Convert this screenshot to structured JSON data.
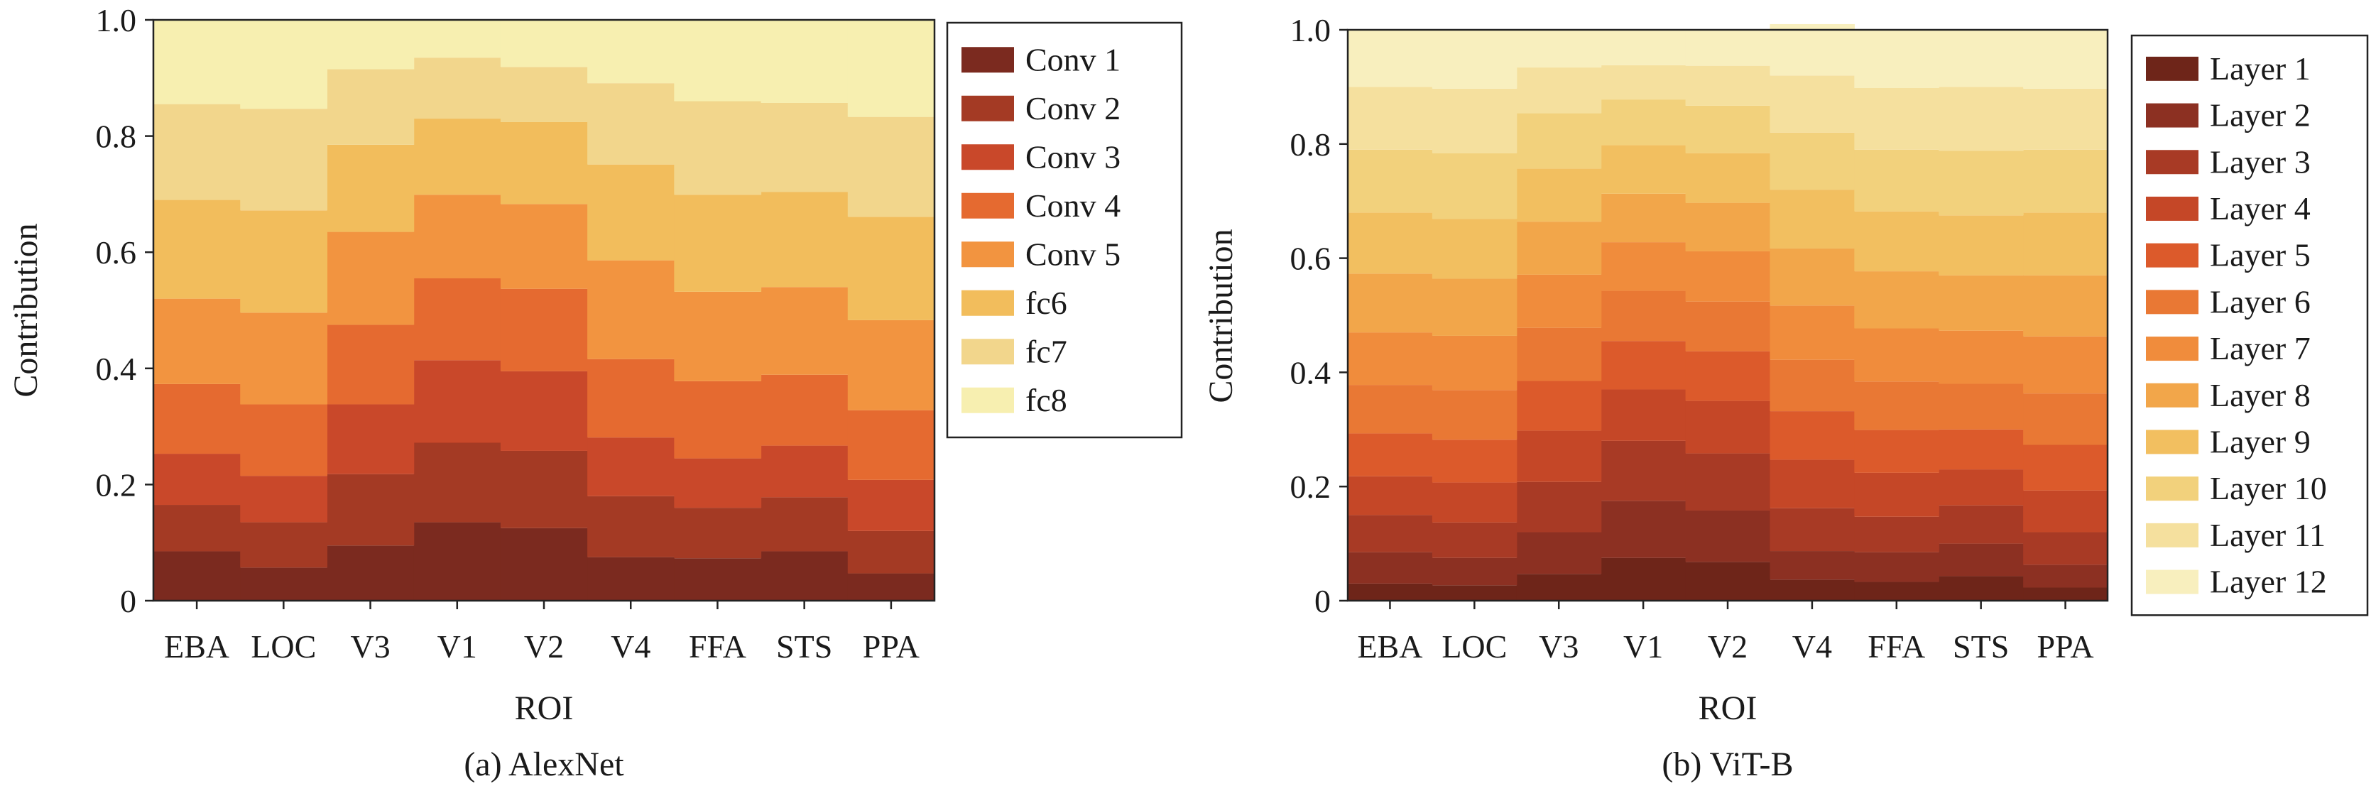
{
  "figure": {
    "captions": [
      "(a) AlexNet",
      "(b) ViT-B"
    ]
  },
  "chart_data": [
    {
      "type": "area",
      "subtype": "stacked-step",
      "caption": "(a) AlexNet",
      "xlabel": "ROI",
      "ylabel": "Contribution",
      "categories": [
        "EBA",
        "LOC",
        "V3",
        "V1",
        "V2",
        "V4",
        "FFA",
        "STS",
        "PPA"
      ],
      "ylim": [
        0,
        1.0
      ],
      "yticks": [
        0,
        0.2,
        0.4,
        0.6,
        0.8,
        1.0
      ],
      "ytick_labels": [
        "0",
        "0.2",
        "0.4",
        "0.6",
        "0.8",
        "1.0"
      ],
      "grid": false,
      "legend": "right",
      "series": [
        {
          "name": "Conv 1",
          "color": "#7b2a1f",
          "values": [
            0.085,
            0.057,
            0.095,
            0.135,
            0.125,
            0.075,
            0.073,
            0.085,
            0.047
          ]
        },
        {
          "name": "Conv 2",
          "color": "#a43a24",
          "values": [
            0.08,
            0.078,
            0.123,
            0.137,
            0.133,
            0.105,
            0.087,
            0.093,
            0.073
          ]
        },
        {
          "name": "Conv 3",
          "color": "#c9482a",
          "values": [
            0.088,
            0.08,
            0.12,
            0.142,
            0.137,
            0.101,
            0.085,
            0.089,
            0.088
          ]
        },
        {
          "name": "Conv 4",
          "color": "#e56a30",
          "values": [
            0.12,
            0.123,
            0.137,
            0.141,
            0.142,
            0.135,
            0.133,
            0.122,
            0.12
          ]
        },
        {
          "name": "Conv 5",
          "color": "#f29440",
          "values": [
            0.147,
            0.158,
            0.16,
            0.144,
            0.146,
            0.17,
            0.154,
            0.151,
            0.155
          ]
        },
        {
          "name": "fc6",
          "color": "#f2bd5c",
          "values": [
            0.17,
            0.176,
            0.15,
            0.131,
            0.141,
            0.165,
            0.167,
            0.164,
            0.178
          ]
        },
        {
          "name": "fc7",
          "color": "#f2d68c",
          "values": [
            0.165,
            0.175,
            0.13,
            0.105,
            0.095,
            0.14,
            0.161,
            0.153,
            0.172
          ]
        },
        {
          "name": "fc8",
          "color": "#f7efb0",
          "values": [
            0.145,
            0.153,
            0.085,
            0.065,
            0.081,
            0.109,
            0.14,
            0.143,
            0.167
          ]
        }
      ]
    },
    {
      "type": "area",
      "subtype": "stacked-step",
      "caption": "(b) ViT-B",
      "xlabel": "ROI",
      "ylabel": "Contribution",
      "categories": [
        "EBA",
        "LOC",
        "V3",
        "V1",
        "V2",
        "V4",
        "FFA",
        "STS",
        "PPA"
      ],
      "ylim": [
        0,
        1.0
      ],
      "yticks": [
        0,
        0.2,
        0.4,
        0.6,
        0.8,
        1.0
      ],
      "ytick_labels": [
        "0",
        "0.2",
        "0.4",
        "0.6",
        "0.8",
        "1.0"
      ],
      "grid": false,
      "legend": "right",
      "series": [
        {
          "name": "Layer 1",
          "color": "#6e2519",
          "values": [
            0.03,
            0.027,
            0.047,
            0.075,
            0.068,
            0.037,
            0.033,
            0.043,
            0.023
          ]
        },
        {
          "name": "Layer 2",
          "color": "#8c3022",
          "values": [
            0.055,
            0.048,
            0.073,
            0.1,
            0.09,
            0.05,
            0.052,
            0.057,
            0.04
          ]
        },
        {
          "name": "Layer 3",
          "color": "#a83a25",
          "values": [
            0.065,
            0.062,
            0.088,
            0.105,
            0.1,
            0.075,
            0.062,
            0.067,
            0.057
          ]
        },
        {
          "name": "Layer 4",
          "color": "#c54727",
          "values": [
            0.068,
            0.07,
            0.09,
            0.09,
            0.092,
            0.085,
            0.077,
            0.063,
            0.073
          ]
        },
        {
          "name": "Layer 5",
          "color": "#dc5a2b",
          "values": [
            0.075,
            0.075,
            0.087,
            0.085,
            0.087,
            0.085,
            0.075,
            0.07,
            0.08
          ]
        },
        {
          "name": "Layer 6",
          "color": "#e97834",
          "values": [
            0.085,
            0.087,
            0.093,
            0.088,
            0.087,
            0.09,
            0.085,
            0.08,
            0.09
          ]
        },
        {
          "name": "Layer 7",
          "color": "#f08c3c",
          "values": [
            0.092,
            0.095,
            0.093,
            0.085,
            0.088,
            0.095,
            0.093,
            0.093,
            0.1
          ]
        },
        {
          "name": "Layer 8",
          "color": "#f2a64a",
          "values": [
            0.103,
            0.1,
            0.093,
            0.085,
            0.085,
            0.1,
            0.1,
            0.097,
            0.107
          ]
        },
        {
          "name": "Layer 9",
          "color": "#f2bf60",
          "values": [
            0.107,
            0.105,
            0.093,
            0.085,
            0.087,
            0.103,
            0.105,
            0.105,
            0.11
          ]
        },
        {
          "name": "Layer 10",
          "color": "#f2d17c",
          "values": [
            0.11,
            0.115,
            0.097,
            0.08,
            0.083,
            0.1,
            0.108,
            0.113,
            0.11
          ]
        },
        {
          "name": "Layer 11",
          "color": "#f5e09e",
          "values": [
            0.11,
            0.113,
            0.08,
            0.06,
            0.07,
            0.1,
            0.108,
            0.112,
            0.107
          ]
        },
        {
          "name": "Layer 12",
          "color": "#f8efbe",
          "values": [
            0.1,
            0.103,
            0.066,
            0.062,
            0.063,
            0.09,
            0.102,
            0.1,
            0.103
          ]
        }
      ]
    }
  ]
}
